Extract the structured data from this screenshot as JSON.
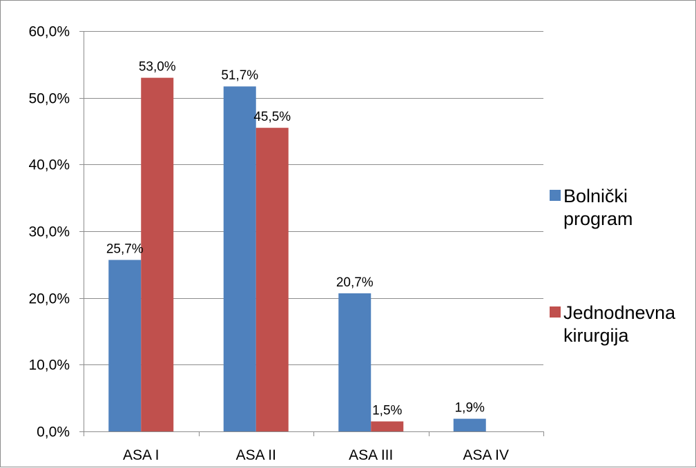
{
  "chart_data": {
    "type": "bar",
    "categories": [
      "ASA I",
      "ASA II",
      "ASA III",
      "ASA IV"
    ],
    "series": [
      {
        "name": "Bolnički program",
        "legend_lines": [
          "Bolnički",
          "program"
        ],
        "color": "#4f81bd",
        "values": [
          25.7,
          51.7,
          20.7,
          1.9
        ],
        "labels": [
          "25,7%",
          "51,7%",
          "20,7%",
          "1,9%"
        ]
      },
      {
        "name": "Jednodnevna kirurgija",
        "legend_lines": [
          "Jednodnevna",
          "kirurgija"
        ],
        "color": "#c0504d",
        "values": [
          53.0,
          45.5,
          1.5,
          null
        ],
        "labels": [
          "53,0%",
          "45,5%",
          "1,5%",
          ""
        ]
      }
    ],
    "title": "",
    "xlabel": "",
    "ylabel": "",
    "ylim": [
      0,
      60
    ],
    "yticks": [
      0,
      10,
      20,
      30,
      40,
      50,
      60
    ],
    "ytick_labels": [
      "0,0%",
      "10,0%",
      "20,0%",
      "30,0%",
      "40,0%",
      "50,0%",
      "60,0%"
    ],
    "grid": true,
    "legend_position": "right"
  }
}
